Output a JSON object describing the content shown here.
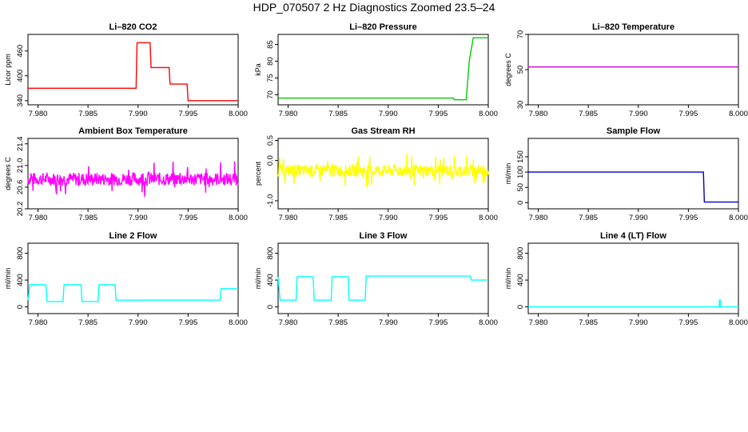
{
  "title": "HDP_070507  2 Hz Diagnostics Zoomed 23.5–24",
  "chart_data": [
    {
      "type": "line",
      "title": "Li–820 CO2",
      "ylabel": "Licor ppm",
      "color": "#ff0000",
      "xlim": [
        7.979,
        8.0
      ],
      "ylim": [
        330,
        500
      ],
      "xticks": [
        "7.980",
        "7.985",
        "7.990",
        "7.995",
        "8.000"
      ],
      "yticks": [
        "340",
        "400",
        "460"
      ],
      "series": [
        {
          "name": "",
          "x": [
            7.979,
            7.9898,
            7.9899,
            7.9912,
            7.9913,
            7.9931,
            7.9932,
            7.9949,
            7.995,
            8.0
          ],
          "y": [
            370,
            370,
            480,
            480,
            420,
            420,
            380,
            380,
            340,
            340
          ]
        }
      ]
    },
    {
      "type": "line",
      "title": "Li–820 Pressure",
      "ylabel": "kPa",
      "color": "#00cc00",
      "xlim": [
        7.979,
        8.0
      ],
      "ylim": [
        67,
        88
      ],
      "xticks": [
        "7.980",
        "7.985",
        "7.990",
        "7.995",
        "8.000"
      ],
      "yticks": [
        "70",
        "75",
        "80",
        "85"
      ],
      "series": [
        {
          "name": "",
          "x": [
            7.979,
            7.9965,
            7.9966,
            7.9978,
            7.9981,
            7.9985,
            8.0
          ],
          "y": [
            69,
            69,
            68.5,
            68.5,
            80,
            87,
            87
          ]
        }
      ]
    },
    {
      "type": "line",
      "title": "Li–820 Temperature",
      "ylabel": "degrees C",
      "color": "#cc00cc",
      "xlim": [
        7.979,
        8.0
      ],
      "ylim": [
        30,
        70
      ],
      "xticks": [
        "7.980",
        "7.985",
        "7.990",
        "7.995",
        "8.000"
      ],
      "yticks": [
        "30",
        "50",
        "70"
      ],
      "series": [
        {
          "name": "",
          "x": [
            7.979,
            8.0
          ],
          "y": [
            51.5,
            51.5
          ]
        }
      ]
    },
    {
      "type": "line",
      "title": "Ambient Box Temperature",
      "ylabel": "degrees C",
      "color": "#ff00ff",
      "noise": 0.12,
      "xlim": [
        7.979,
        8.0
      ],
      "ylim": [
        20.2,
        21.5
      ],
      "xticks": [
        "7.980",
        "7.985",
        "7.990",
        "7.995",
        "8.000"
      ],
      "yticks": [
        "20.2",
        "20.6",
        "21.0",
        "21.4"
      ],
      "series": [
        {
          "name": "",
          "x": [
            7.979,
            8.0
          ],
          "y": [
            20.75,
            20.75
          ]
        }
      ]
    },
    {
      "type": "line",
      "title": "Gas Stream RH",
      "ylabel": "percent",
      "color": "#ffff00",
      "noise": 0.15,
      "xlim": [
        7.979,
        8.0
      ],
      "ylim": [
        -1.2,
        0.55
      ],
      "xticks": [
        "7.980",
        "7.985",
        "7.990",
        "7.995",
        "8.000"
      ],
      "yticks": [
        "-1.0",
        "0.0",
        "0.5"
      ],
      "series": [
        {
          "name": "",
          "x": [
            7.979,
            8.0
          ],
          "y": [
            -0.25,
            -0.25
          ]
        }
      ]
    },
    {
      "type": "line",
      "title": "Sample Flow",
      "ylabel": "ml/min",
      "color": "#0000cc",
      "xlim": [
        7.979,
        8.0
      ],
      "ylim": [
        -20,
        210
      ],
      "xticks": [
        "7.980",
        "7.985",
        "7.990",
        "7.995",
        "8.000"
      ],
      "yticks": [
        "0",
        "50",
        "100",
        "150"
      ],
      "series": [
        {
          "name": "",
          "x": [
            7.979,
            7.9965,
            7.9966,
            8.0
          ],
          "y": [
            100,
            100,
            2,
            2
          ]
        }
      ]
    },
    {
      "type": "line",
      "title": "Line 2 Flow",
      "ylabel": "ml/min",
      "color": "#00ffff",
      "xlim": [
        7.979,
        8.0
      ],
      "ylim": [
        -100,
        950
      ],
      "xticks": [
        "7.980",
        "7.985",
        "7.990",
        "7.995",
        "8.000"
      ],
      "yticks": [
        "0",
        "400",
        "800"
      ],
      "series": [
        {
          "name": "",
          "x": [
            7.979,
            7.9792,
            7.9808,
            7.9809,
            7.9825,
            7.9826,
            7.9843,
            7.9844,
            7.986,
            7.9861,
            7.9877,
            7.9878,
            7.9982,
            7.9983,
            8.0
          ],
          "y": [
            100,
            330,
            330,
            80,
            80,
            330,
            330,
            80,
            80,
            330,
            330,
            100,
            100,
            270,
            270
          ]
        }
      ]
    },
    {
      "type": "line",
      "title": "Line 3 Flow",
      "ylabel": "ml/min",
      "color": "#00ffff",
      "xlim": [
        7.979,
        8.0
      ],
      "ylim": [
        -100,
        950
      ],
      "xticks": [
        "7.980",
        "7.985",
        "7.990",
        "7.995",
        "8.000"
      ],
      "yticks": [
        "0",
        "400",
        "800"
      ],
      "series": [
        {
          "name": "",
          "x": [
            7.979,
            7.9792,
            7.9808,
            7.9809,
            7.9825,
            7.9826,
            7.9843,
            7.9844,
            7.986,
            7.9861,
            7.9877,
            7.9878,
            7.9982,
            7.9983,
            8.0
          ],
          "y": [
            450,
            100,
            100,
            450,
            450,
            100,
            100,
            450,
            450,
            100,
            100,
            460,
            460,
            400,
            400
          ]
        }
      ]
    },
    {
      "type": "line",
      "title": "Line 4 (LT) Flow",
      "ylabel": "ml/min",
      "color": "#00ffff",
      "xlim": [
        7.979,
        8.0
      ],
      "ylim": [
        -100,
        950
      ],
      "xticks": [
        "7.980",
        "7.985",
        "7.990",
        "7.995",
        "8.000"
      ],
      "yticks": [
        "0",
        "400",
        "800"
      ],
      "series": [
        {
          "name": "",
          "x": [
            7.979,
            7.9981,
            7.9981,
            7.9982,
            7.9982,
            8.0
          ],
          "y": [
            0,
            0,
            100,
            100,
            0,
            0
          ]
        }
      ]
    }
  ]
}
